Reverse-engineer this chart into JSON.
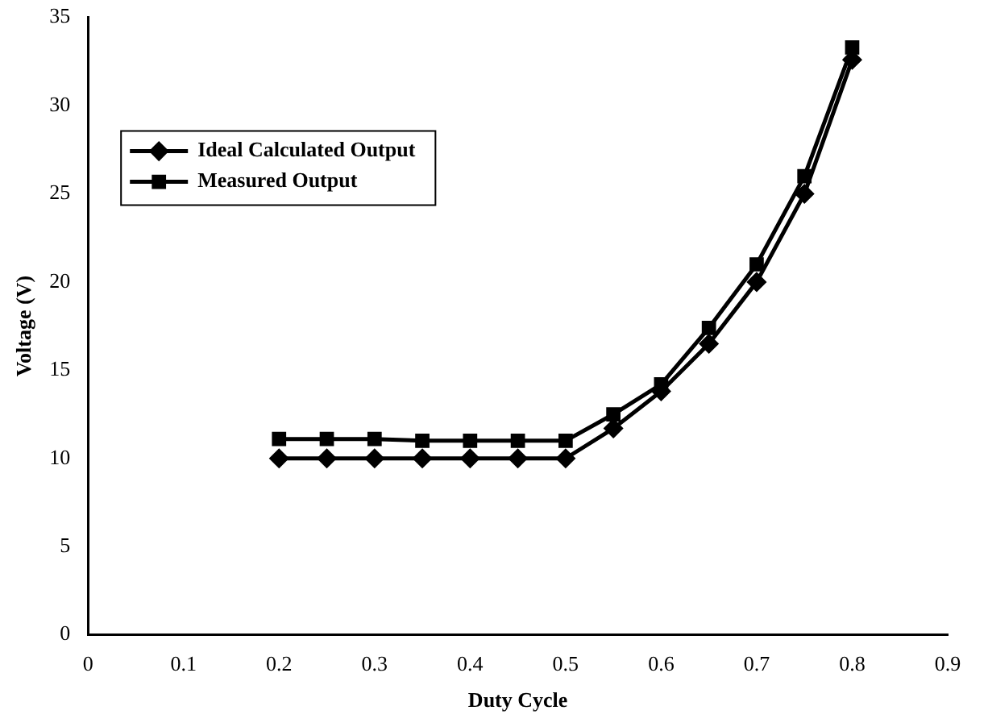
{
  "chart_data": {
    "type": "line",
    "xlabel": "Duty Cycle",
    "ylabel": "Voltage (V)",
    "x": [
      0.2,
      0.25,
      0.3,
      0.35,
      0.4,
      0.45,
      0.5,
      0.55,
      0.6,
      0.65,
      0.7,
      0.75,
      0.8
    ],
    "series": [
      {
        "name": "Ideal Calculated Output",
        "color": "#000000",
        "marker": "diamond",
        "values": [
          10,
          10,
          10,
          10,
          10,
          10,
          10,
          11.7,
          13.8,
          16.5,
          20,
          25,
          32.6
        ]
      },
      {
        "name": "Measured Output",
        "color": "#000000",
        "marker": "square",
        "values": [
          11.1,
          11.1,
          11.1,
          11,
          11,
          11,
          11,
          12.5,
          14.2,
          17.4,
          21,
          26,
          33.3
        ]
      }
    ],
    "xlim": [
      0,
      0.9
    ],
    "xticks": [
      0,
      0.1,
      0.2,
      0.3,
      0.4,
      0.5,
      0.6,
      0.7,
      0.8,
      0.9
    ],
    "ylim": [
      0,
      35
    ],
    "yticks": [
      0,
      5,
      10,
      15,
      20,
      25,
      30,
      35
    ],
    "grid": false,
    "legend": "top left"
  }
}
